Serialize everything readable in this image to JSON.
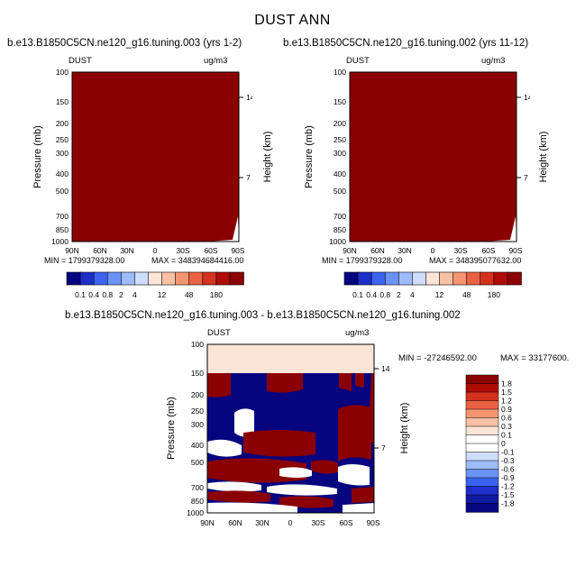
{
  "page_title": "DUST ANN",
  "colors": {
    "field_dark_red": "#8b0000",
    "diff_light_peach": "#fbe5d6",
    "diff_navy": "#05057f",
    "white": "#ffffff"
  },
  "panels": [
    {
      "case": "b.e13.B1850C5CN.ne120_g16.tuning.003 (yrs 1-2)",
      "variable": "DUST",
      "units": "ug/m3",
      "min_label": "MIN = 1799379328.00",
      "max_label": "MAX = 348394684416.00",
      "ylabel": "Pressure (mb)",
      "ylabel_right": "Height (km)"
    },
    {
      "case": "b.e13.B1850C5CN.ne120_g16.tuning.002 (yrs 11-12)",
      "variable": "DUST",
      "units": "ug/m3",
      "min_label": "MIN = 1799379328.00",
      "max_label": "MAX = 348395077632.00",
      "ylabel": "Pressure (mb)",
      "ylabel_right": "Height (km)"
    },
    {
      "case": "b.e13.B1850C5CN.ne120_g16.tuning.003 - b.e13.B1850C5CN.ne120_g16.tuning.002",
      "variable": "DUST",
      "units": "ug/m3",
      "min_label": "MIN = -27246592.00",
      "max_label": "MAX = 33177600.",
      "ylabel": "Pressure (mb)",
      "ylabel_right": "Height (km)"
    }
  ],
  "chart_data": [
    {
      "type": "heatmap",
      "title": "b.e13.B1850C5CN.ne120_g16.tuning.003 (yrs 1-2)",
      "x_ticks": [
        "90N",
        "60N",
        "30N",
        "0",
        "30S",
        "60S",
        "90S"
      ],
      "y_ticks": [
        "100",
        "150",
        "200",
        "250",
        "300",
        "400",
        "500",
        "700",
        "850",
        "1000"
      ],
      "y_ticks_right": [
        "14",
        "7"
      ],
      "y_log": true,
      "ylim": [
        1000,
        100
      ],
      "xlim": [
        90,
        -90
      ],
      "colorbar_levels": [
        "0.1",
        "0.4",
        "0.8",
        "2",
        "4",
        "12",
        "48",
        "180"
      ],
      "colorbar_colors": [
        "#05057f",
        "#1d2fc8",
        "#3c63ef",
        "#6b93f7",
        "#9ebcfb",
        "#cfddfc",
        "#fbe5d6",
        "#f9c0a3",
        "#f59470",
        "#ea6243",
        "#d4311e",
        "#b00b06",
        "#8b0000"
      ],
      "field": "Dark red (top category) over nearly the whole cross-section"
    },
    {
      "type": "heatmap",
      "title": "b.e13.B1850C5CN.ne120_g16.tuning.002 (yrs 11-12)",
      "x_ticks": [
        "90N",
        "60N",
        "30N",
        "0",
        "30S",
        "60S",
        "90S"
      ],
      "y_ticks": [
        "100",
        "150",
        "200",
        "250",
        "300",
        "400",
        "500",
        "700",
        "850",
        "1000"
      ],
      "y_ticks_right": [
        "14",
        "7"
      ],
      "y_log": true,
      "ylim": [
        1000,
        100
      ],
      "xlim": [
        90,
        -90
      ],
      "colorbar_levels": [
        "0.1",
        "0.4",
        "0.8",
        "2",
        "4",
        "12",
        "48",
        "180"
      ],
      "colorbar_colors": [
        "#05057f",
        "#1d2fc8",
        "#3c63ef",
        "#6b93f7",
        "#9ebcfb",
        "#cfddfc",
        "#fbe5d6",
        "#f9c0a3",
        "#f59470",
        "#ea6243",
        "#d4311e",
        "#b00b06",
        "#8b0000"
      ],
      "field": "Dark red (top category) over nearly the whole cross-section"
    },
    {
      "type": "heatmap",
      "title": "b.e13.B1850C5CN.ne120_g16.tuning.003 - b.e13.B1850C5CN.ne120_g16.tuning.002",
      "x_ticks": [
        "90N",
        "60N",
        "30N",
        "0",
        "30S",
        "60S",
        "90S"
      ],
      "y_ticks": [
        "100",
        "150",
        "200",
        "250",
        "300",
        "400",
        "500",
        "700",
        "850",
        "1000"
      ],
      "y_ticks_right": [
        "14",
        "7"
      ],
      "y_log": true,
      "ylim": [
        1000,
        100
      ],
      "xlim": [
        90,
        -90
      ],
      "colorbar_levels": [
        "1.8",
        "1.5",
        "1.2",
        "0.9",
        "0.6",
        "0.3",
        "0.1",
        "0",
        "-0.1",
        "-0.3",
        "-0.6",
        "-0.9",
        "-1.2",
        "-1.5",
        "-1.8"
      ],
      "colorbar_colors": [
        "#8b0000",
        "#b00b06",
        "#d4311e",
        "#ea6243",
        "#f59470",
        "#f9c0a3",
        "#fbe5d6",
        "#ffffff",
        "#ffffff",
        "#cfddfc",
        "#9ebcfb",
        "#6b93f7",
        "#3c63ef",
        "#1d2fc8",
        "#101aa0",
        "#05057f"
      ],
      "field": "Light peach band 100-150 mb; alternating dark red, navy and white bands below 150 mb"
    }
  ]
}
